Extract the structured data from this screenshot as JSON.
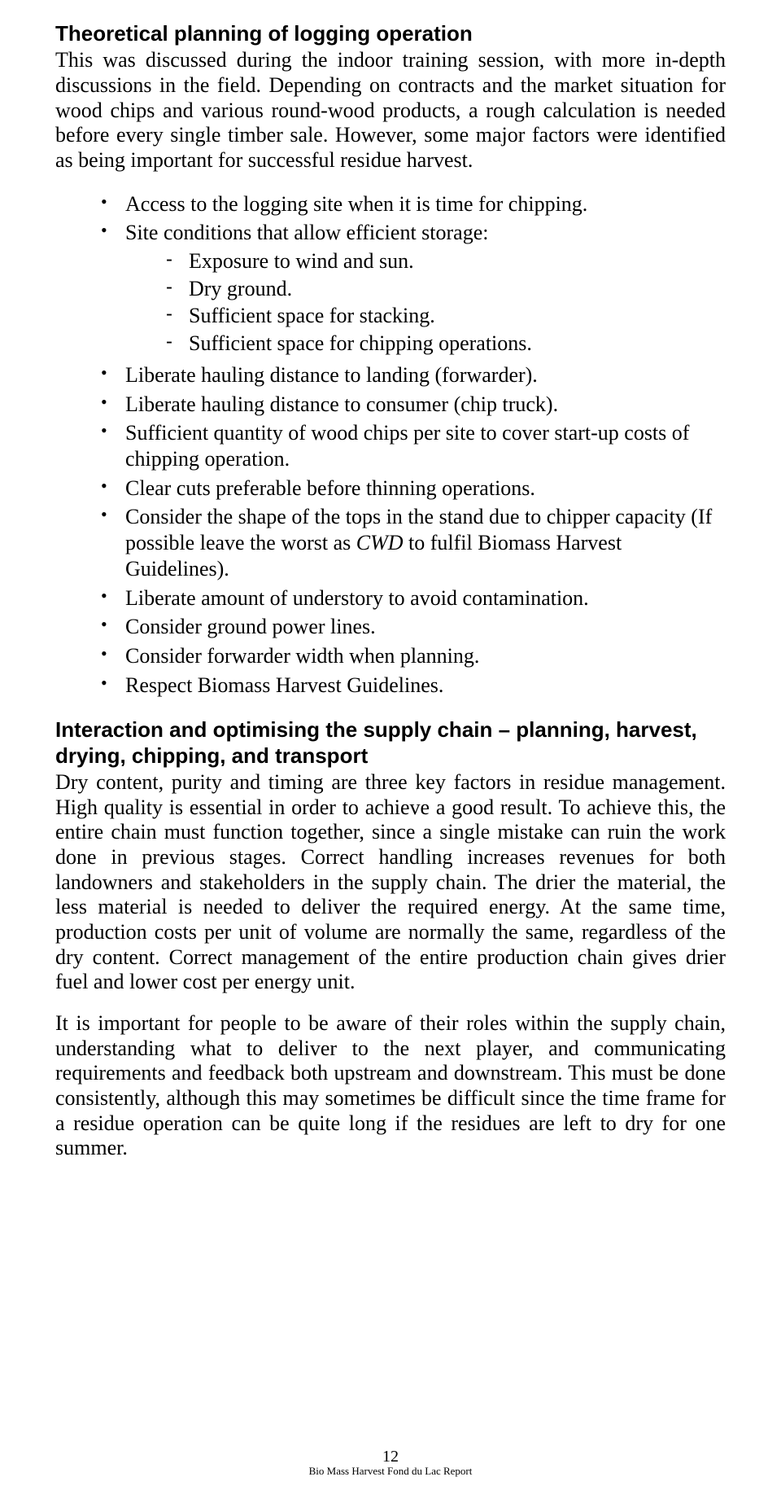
{
  "section1": {
    "heading": "Theoretical planning of logging operation",
    "intro": "This was discussed during the indoor training session, with more in-depth discussions in the field. Depending on contracts and the market situation for wood chips and various round-wood products, a rough calculation is needed before every single timber sale. However, some major factors were identified as being important for successful residue harvest.",
    "bullets": [
      "Access to the logging site when it is time for chipping.",
      "Site conditions that allow efficient storage:",
      "Liberate hauling distance to landing (forwarder).",
      "Liberate hauling distance to consumer (chip truck).",
      "Sufficient quantity of wood chips per site to cover start-up costs of chipping operation.",
      "Clear cuts preferable before thinning operations.",
      "Liberate amount of understory to avoid contamination.",
      "Consider ground power lines.",
      "Consider forwarder width when planning.",
      "Respect Biomass Harvest Guidelines."
    ],
    "sub": {
      "items": [
        "Exposure to wind and sun.",
        "Dry ground.",
        "Sufficient space for stacking.",
        "Sufficient space for chipping operations."
      ]
    },
    "shape_bullet": {
      "pre": "Consider the shape of the tops in the stand due to chipper capacity (If possible leave the worst as ",
      "italic": "CWD",
      "post": " to fulfil Biomass Harvest Guidelines)."
    }
  },
  "section2": {
    "heading": "Interaction and optimising the supply chain – planning, harvest, drying, chipping, and transport",
    "para1": "Dry content, purity and timing are three key factors in residue management. High quality is essential in order to achieve a good result. To achieve this, the entire chain must function together, since a single mistake can ruin the work done in previous stages. Correct handling increases revenues for both landowners and stakeholders in the supply chain. The drier the material, the less material is needed to deliver the required energy. At the same time, production costs per unit of volume are normally the same, regardless of the dry content. Correct management of the entire production chain gives drier fuel and lower cost per energy unit.",
    "para2": "It is important for people to be aware of their roles within the supply chain, understanding what to deliver to the next player, and communicating requirements and feedback both upstream and downstream. This must be done consistently, although this may sometimes be difficult since the time frame for a residue operation can be quite long if the residues are left to dry for one summer."
  },
  "footer": {
    "page_number": "12",
    "title": "Bio Mass Harvest Fond du Lac Report"
  }
}
